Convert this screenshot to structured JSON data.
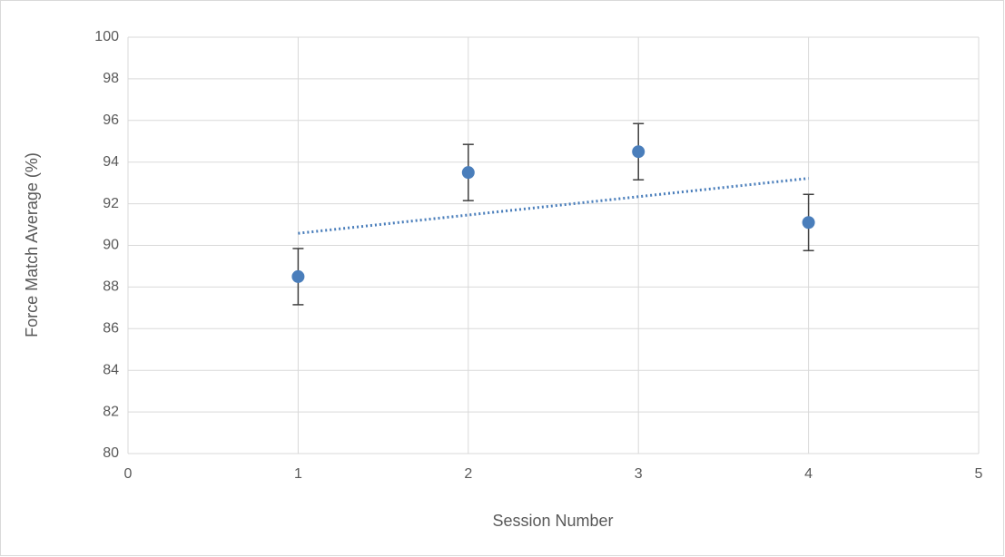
{
  "chart_data": {
    "type": "scatter",
    "x_label": "Session Number",
    "y_label": "Force Match Average (%)",
    "x": [
      1,
      2,
      3,
      4
    ],
    "series": [
      {
        "color": "#4a7ebb",
        "values": [
          88.5,
          93.5,
          94.5,
          91.1
        ],
        "errors": [
          1.35,
          1.35,
          1.35,
          1.35
        ]
      }
    ],
    "trendline": "linear",
    "xlim": [
      0,
      5
    ],
    "xticks": [
      0,
      1,
      2,
      3,
      4,
      5
    ],
    "ylim": [
      80,
      100
    ],
    "yticks": [
      80,
      82,
      84,
      86,
      88,
      90,
      92,
      94,
      96,
      98,
      100
    ],
    "grid": true
  }
}
